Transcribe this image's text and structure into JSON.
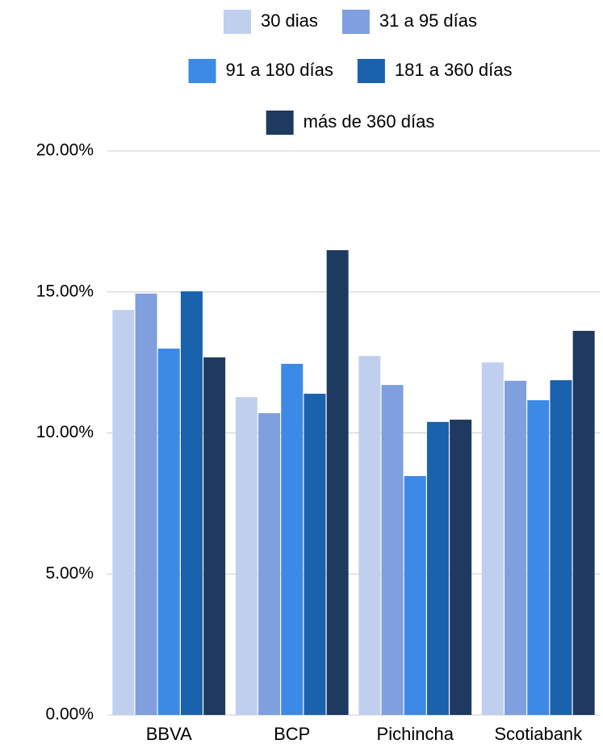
{
  "chart_data": {
    "type": "bar",
    "categories": [
      "BBVA",
      "BCP",
      "Pichincha",
      "Scotiabank"
    ],
    "series": [
      {
        "name": "30 dias",
        "color": "#c1cfef",
        "values": [
          14.36,
          11.27,
          12.73,
          12.5
        ]
      },
      {
        "name": "31 a 95 días",
        "color": "#7f9fdf",
        "values": [
          14.94,
          10.7,
          11.7,
          11.85
        ]
      },
      {
        "name": "91 a 180 días",
        "color": "#3c8ae6",
        "values": [
          12.99,
          12.45,
          8.47,
          11.16
        ]
      },
      {
        "name": "181 a 360 días",
        "color": "#1a62ad",
        "values": [
          15.02,
          11.39,
          10.39,
          11.87
        ]
      },
      {
        "name": "más de 360 días",
        "color": "#1f3a60",
        "values": [
          12.68,
          16.48,
          10.47,
          13.62
        ]
      }
    ],
    "ylim": [
      0,
      20
    ],
    "yticks": [
      {
        "value": 0,
        "label": "0.00%"
      },
      {
        "value": 5,
        "label": "5.00%"
      },
      {
        "value": 10,
        "label": "10.00%"
      },
      {
        "value": 15,
        "label": "15.00%"
      },
      {
        "value": 20,
        "label": "20.00%"
      }
    ],
    "grid": true,
    "legend": "top"
  }
}
